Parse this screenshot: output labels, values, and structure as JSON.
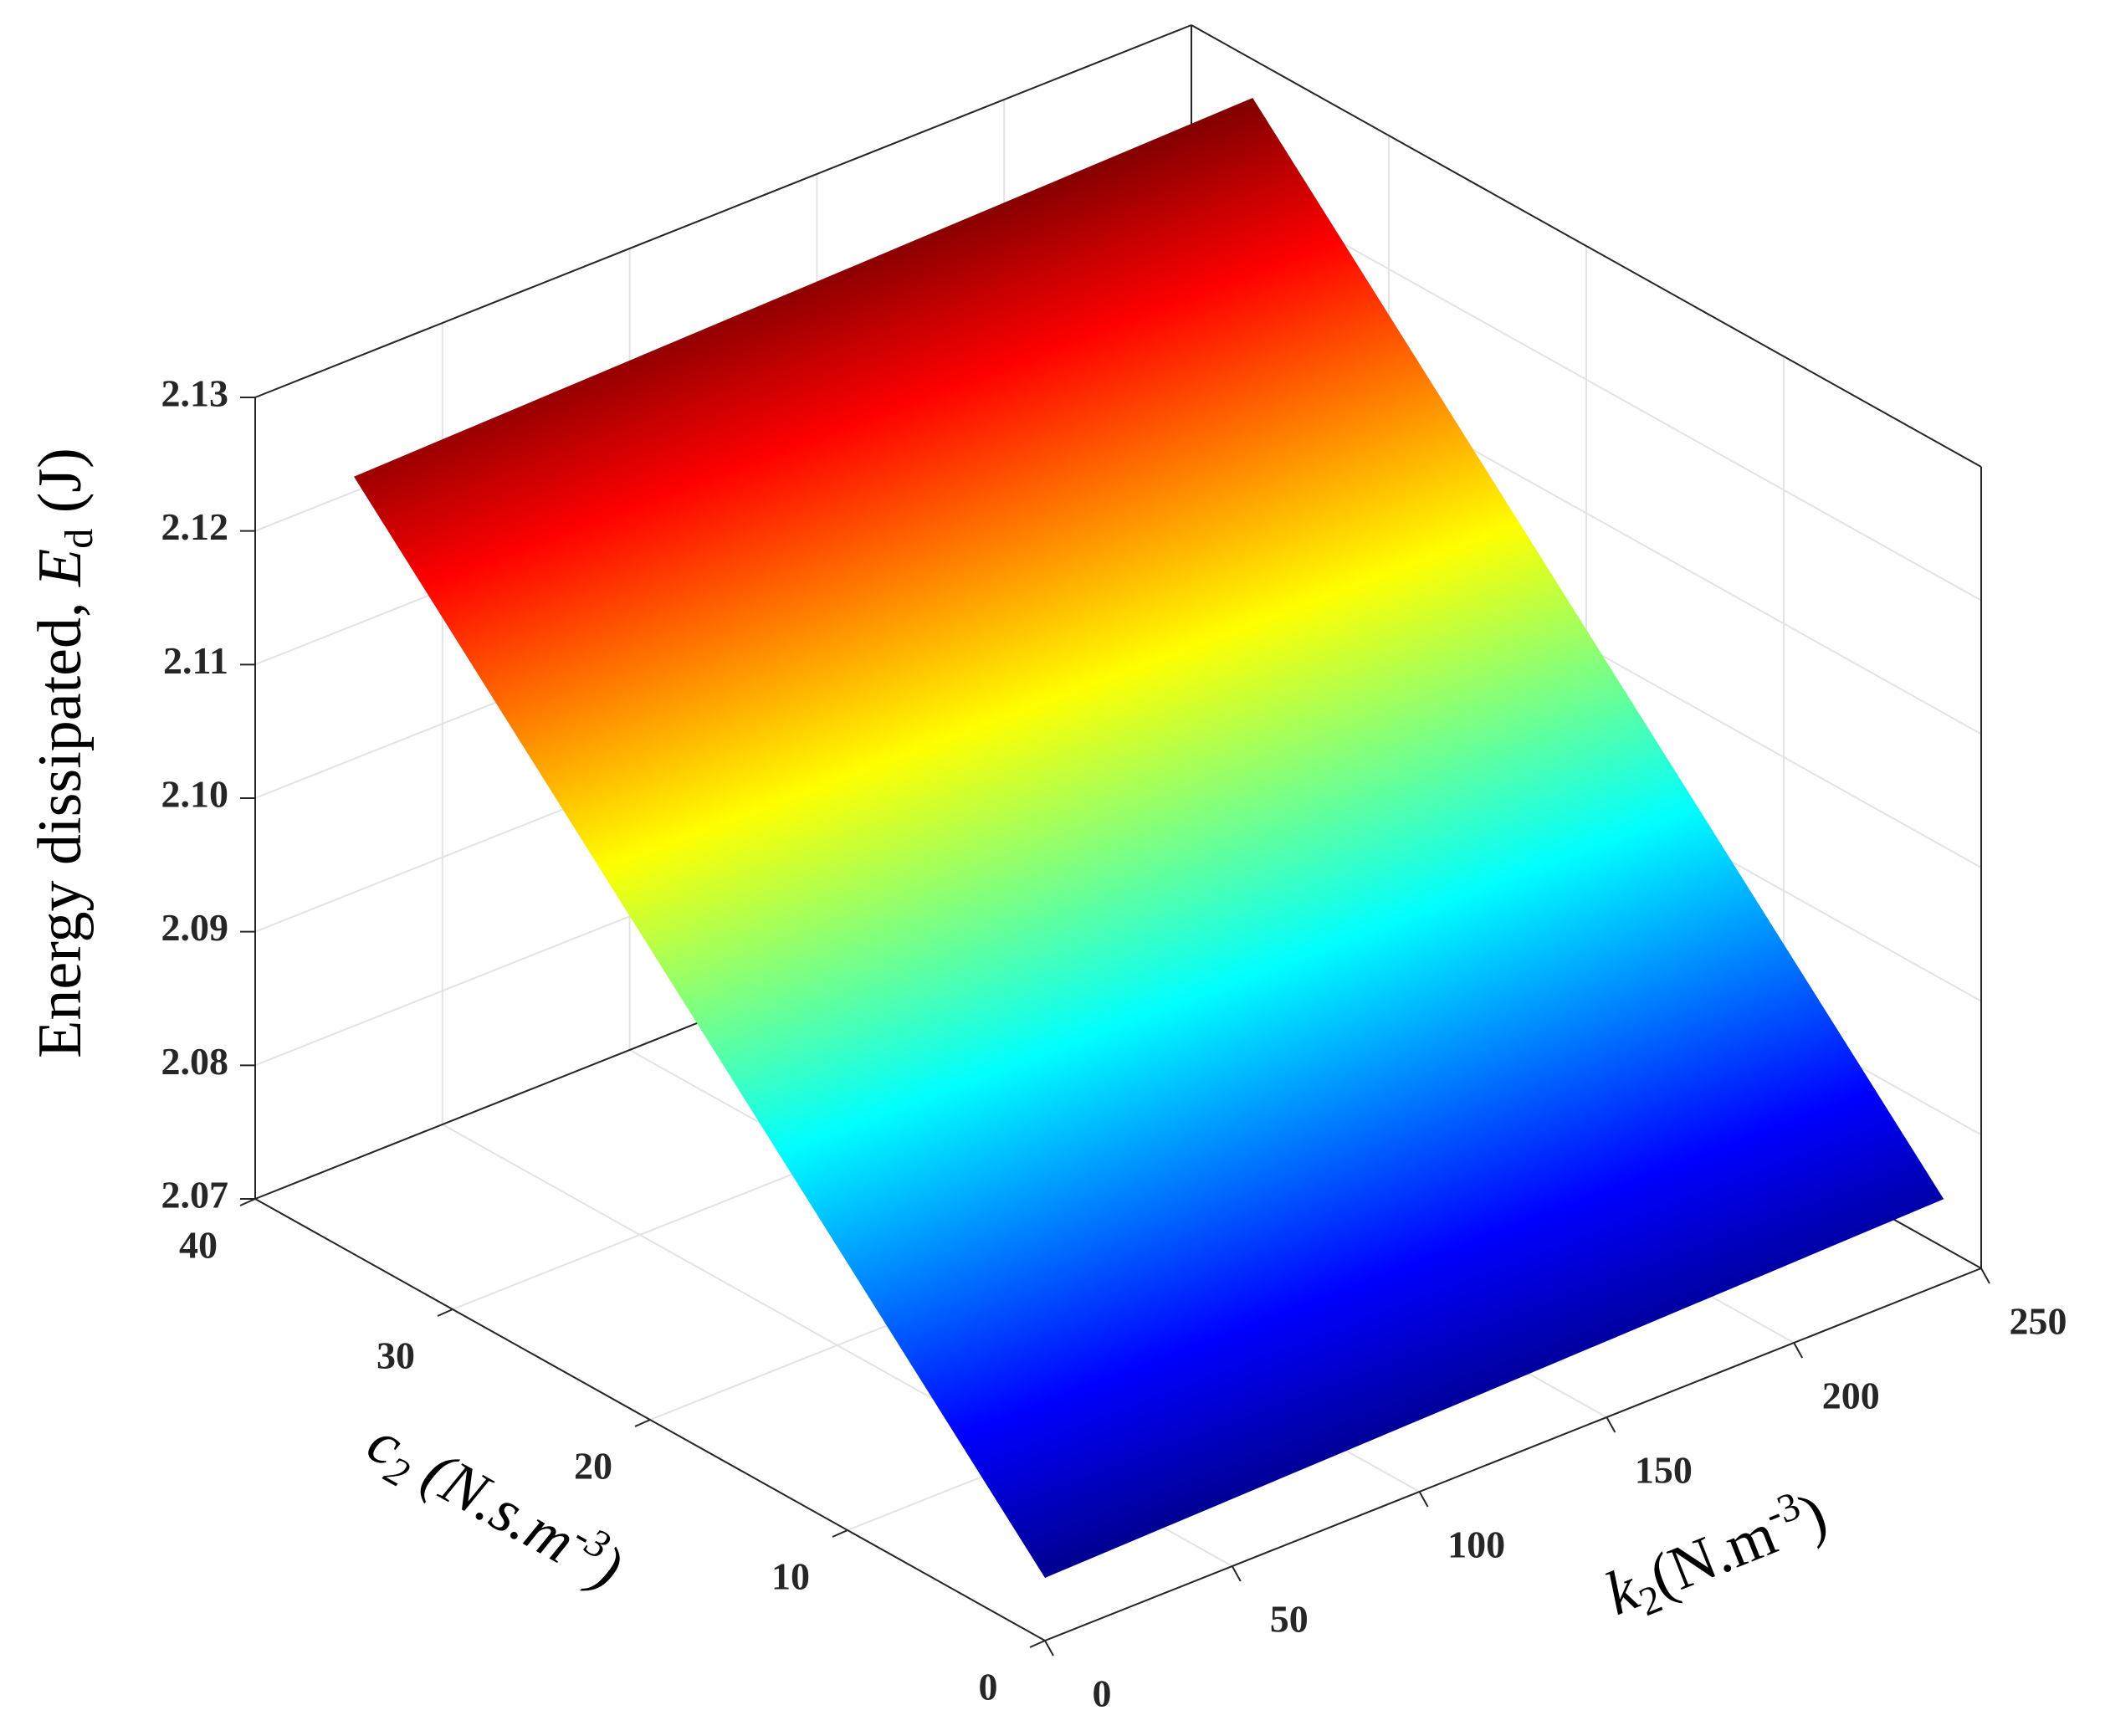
{
  "chart_data": {
    "type": "surface",
    "xlabel": {
      "symbol": "k",
      "subscript": "2",
      "unit": "(N.m",
      "exponent": "-3",
      "close": ")"
    },
    "ylabel": {
      "symbol": "c",
      "subscript": "2",
      "unit": "(N.s.m",
      "exponent": "-3",
      "close": ")"
    },
    "zlabel": {
      "text": "Energy dissipated,",
      "symbol": "E",
      "subscript": "d",
      "unit": "(J)"
    },
    "x": [
      0,
      240
    ],
    "y": [
      0,
      35
    ],
    "z": [
      [
        2.0747,
        2.0763
      ],
      [
        2.1282,
        2.1298
      ]
    ],
    "xlim": [
      0,
      250
    ],
    "xticks": [
      0,
      50,
      100,
      150,
      200,
      250
    ],
    "ylim": [
      0,
      40
    ],
    "yticks": [
      0,
      10,
      20,
      30,
      40
    ],
    "zlim": [
      2.07,
      2.13
    ],
    "zticks": [
      2.07,
      2.08,
      2.09,
      {
        "value": 2.1,
        "label": "2.10"
      },
      2.11,
      2.12,
      2.13
    ],
    "colormap": "jet",
    "grid": true
  }
}
